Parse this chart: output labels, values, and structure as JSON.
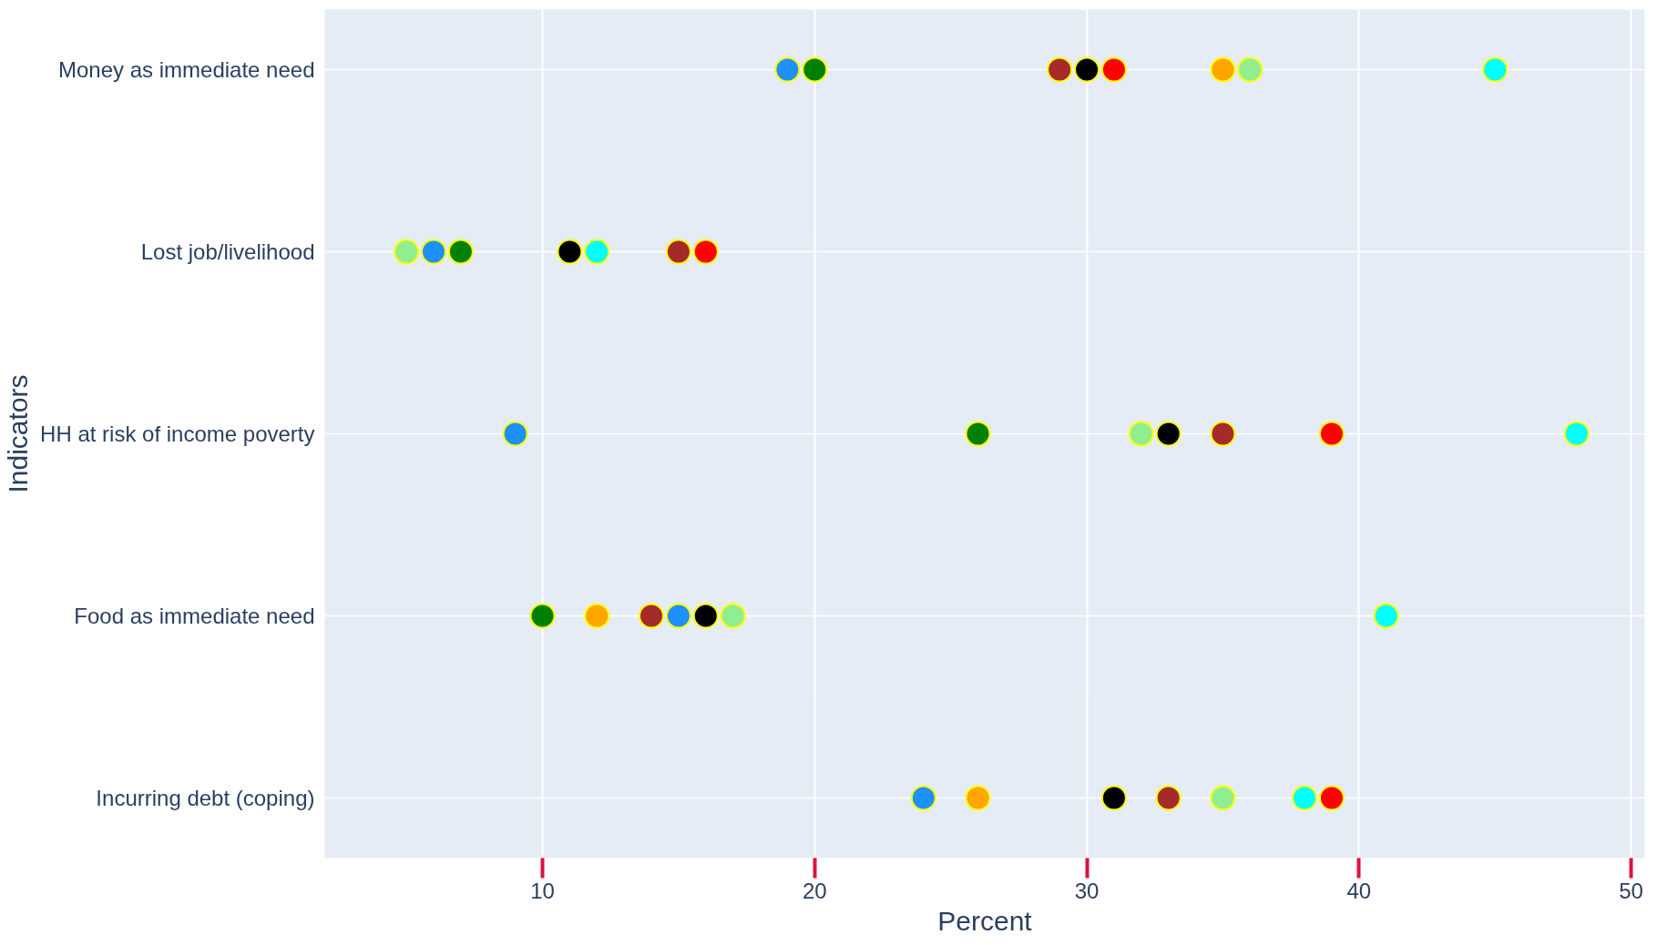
{
  "chart_data": {
    "type": "scatter",
    "xlabel": "Percent",
    "ylabel": "Indicators",
    "categories": [
      "Money as immediate need",
      "Lost job/livelihood",
      "HH at risk of income poverty",
      "Food as immediate need",
      "Incurring debt (coping)"
    ],
    "orientation": "horizontal",
    "series": [
      {
        "color": "#1e90ff",
        "values": [
          19,
          6,
          9,
          15,
          24
        ]
      },
      {
        "color": "#008000",
        "values": [
          20,
          7,
          26,
          10,
          null
        ]
      },
      {
        "color": "#a52a2a",
        "values": [
          29,
          15,
          35,
          14,
          33
        ]
      },
      {
        "color": "#000000",
        "values": [
          30,
          11,
          33,
          16,
          31
        ]
      },
      {
        "color": "#ff0000",
        "values": [
          31,
          16,
          39,
          null,
          39
        ]
      },
      {
        "color": "#ffa500",
        "values": [
          35,
          null,
          null,
          12,
          26
        ]
      },
      {
        "color": "#90ee90",
        "values": [
          36,
          5,
          32,
          17,
          35
        ]
      },
      {
        "color": "#00ffff",
        "values": [
          45,
          12,
          48,
          41,
          38
        ]
      }
    ],
    "xlim": [
      2,
      50.5
    ],
    "xticks": [
      10,
      20,
      30,
      40,
      50
    ],
    "grid": true,
    "marker": "circle"
  }
}
